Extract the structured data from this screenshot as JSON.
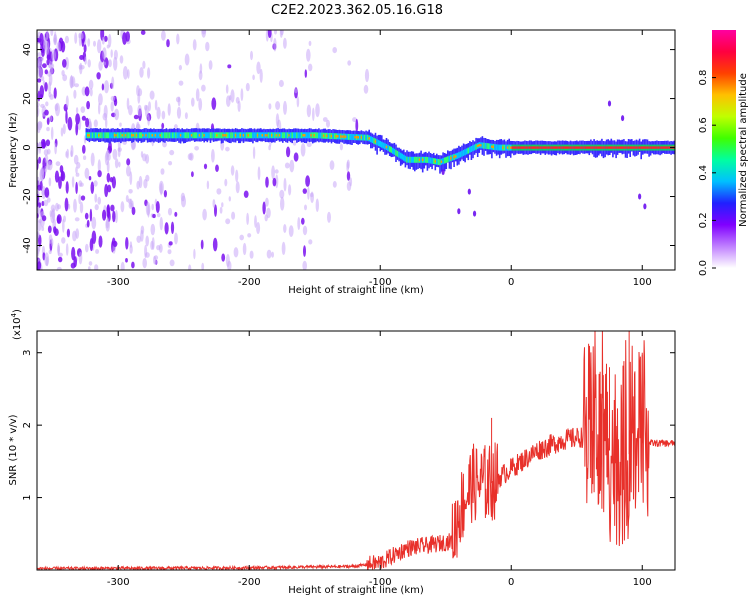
{
  "title": "C2E2.2023.362.05.16.G18",
  "chart_data": [
    {
      "type": "heatmap",
      "panel": "top",
      "xlabel": "Height of straight line (km)",
      "ylabel": "Frequency (Hz)",
      "xlim": [
        -362,
        125
      ],
      "ylim": [
        -50,
        48
      ],
      "xticks": [
        -300,
        -200,
        -100,
        0,
        100
      ],
      "yticks": [
        -40,
        -20,
        0,
        20,
        40
      ],
      "colorbar": {
        "label": "Normalized spectral amplitude",
        "range": [
          0.0,
          1.0
        ],
        "ticks": [
          0.0,
          0.2,
          0.4,
          0.6,
          0.8
        ],
        "colors": [
          "#ffffff",
          "#c080ff",
          "#8000ff",
          "#2020ff",
          "#00c0ff",
          "#00ffa0",
          "#40ff00",
          "#c0ff00",
          "#ffc000",
          "#ff4000",
          "#ff0040",
          "#ff00a0"
        ]
      },
      "ridge_frequency": [
        {
          "x": -320,
          "y": 5
        },
        {
          "x": -250,
          "y": 5
        },
        {
          "x": -200,
          "y": 5
        },
        {
          "x": -150,
          "y": 5
        },
        {
          "x": -110,
          "y": 4
        },
        {
          "x": -95,
          "y": 0
        },
        {
          "x": -80,
          "y": -5
        },
        {
          "x": -65,
          "y": -5
        },
        {
          "x": -55,
          "y": -6
        },
        {
          "x": -40,
          "y": -3
        },
        {
          "x": -25,
          "y": 1
        },
        {
          "x": -10,
          "y": 0
        },
        {
          "x": 0,
          "y": 0
        },
        {
          "x": 50,
          "y": 0
        },
        {
          "x": 100,
          "y": 0
        },
        {
          "x": 125,
          "y": 0
        }
      ]
    },
    {
      "type": "line",
      "panel": "bottom",
      "xlabel": "Height of straight line (km)",
      "ylabel": "SNR (10 * v/v)",
      "multiplier": "(x10",
      "multiplier_exp": "4",
      "multiplier_close": ")",
      "xlim": [
        -362,
        125
      ],
      "ylim": [
        0,
        3.3
      ],
      "xticks": [
        -300,
        -200,
        -100,
        0,
        100
      ],
      "yticks": [
        1,
        2,
        3
      ],
      "line_color": "#e8302a",
      "series_envelope": [
        {
          "x": -362,
          "y": 0.02
        },
        {
          "x": -200,
          "y": 0.03
        },
        {
          "x": -120,
          "y": 0.05
        },
        {
          "x": -100,
          "y": 0.1
        },
        {
          "x": -80,
          "y": 0.3
        },
        {
          "x": -60,
          "y": 0.35
        },
        {
          "x": -45,
          "y": 0.4
        },
        {
          "x": -40,
          "y": 0.8
        },
        {
          "x": -30,
          "y": 1.2
        },
        {
          "x": -15,
          "y": 1.2
        },
        {
          "x": 0,
          "y": 1.4
        },
        {
          "x": 20,
          "y": 1.65
        },
        {
          "x": 40,
          "y": 1.8
        },
        {
          "x": 60,
          "y": 1.85
        },
        {
          "x": 70,
          "y": 1.7
        },
        {
          "x": 80,
          "y": 1.6
        },
        {
          "x": 90,
          "y": 1.6
        },
        {
          "x": 100,
          "y": 1.75
        },
        {
          "x": 125,
          "y": 1.75
        }
      ],
      "spikes": [
        {
          "x": -15,
          "y": 2.1
        },
        {
          "x": 75,
          "y": 2.8
        },
        {
          "x": 90,
          "y": 3.3
        },
        {
          "x": 100,
          "y": 3.0
        }
      ]
    }
  ]
}
